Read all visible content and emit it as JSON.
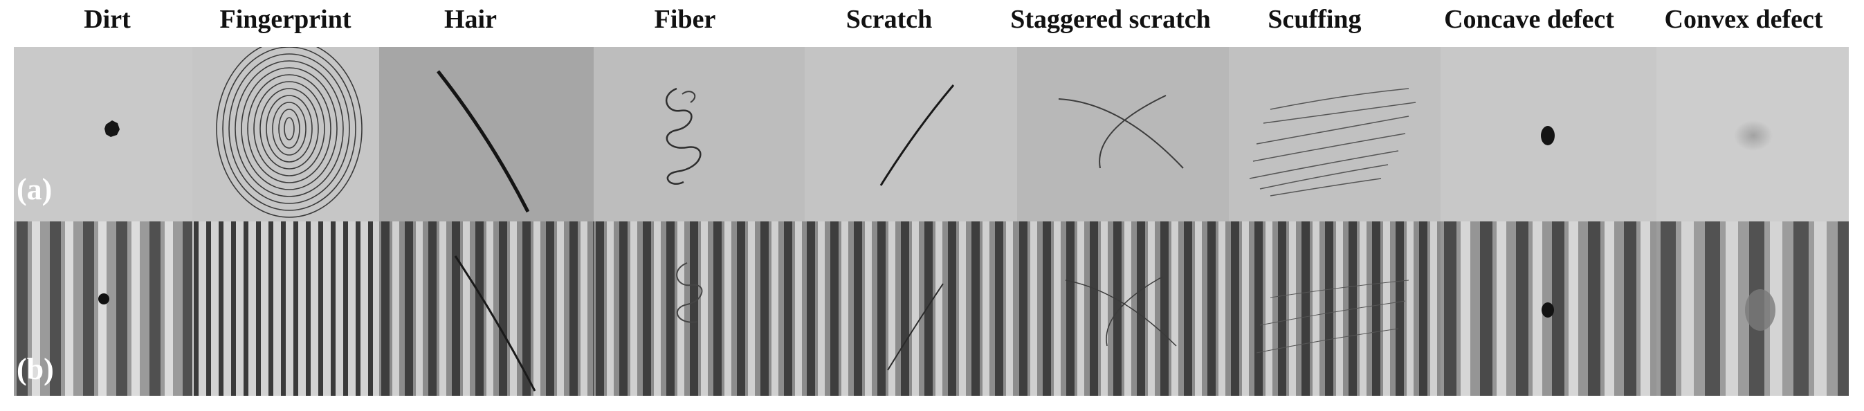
{
  "labels": {
    "dirt": "Dirt",
    "fingerprint": "Fingerprint",
    "hair": "Hair",
    "fiber": "Fiber",
    "scratch": "Scratch",
    "staggered_scratch": "Staggered scratch",
    "scuffing": "Scuffing",
    "concave_defect": "Concave defect",
    "convex_defect": "Convex defect"
  },
  "rows": {
    "a": "(a)",
    "b": "(b)"
  }
}
